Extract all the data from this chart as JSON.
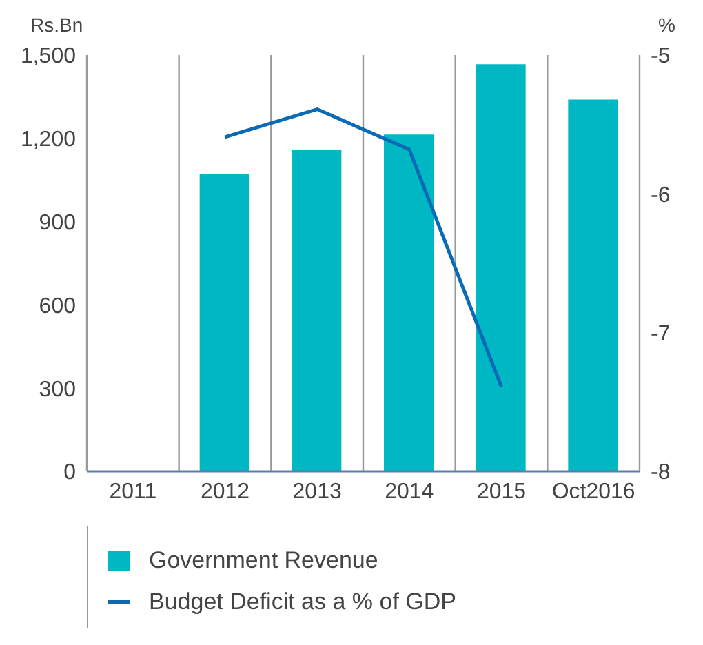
{
  "chart_data": {
    "type": "bar",
    "ylabel": "Rs.Bn",
    "y2label": "%",
    "categories": [
      "2011",
      "2012",
      "2013",
      "2014",
      "2015",
      "Oct2016"
    ],
    "series": [
      {
        "name": "Government Revenue",
        "color": "#00b8c4",
        "values": [
          null,
          1072,
          1160,
          1214,
          1467,
          1340
        ]
      },
      {
        "name": "Budget Deficit as a % of GDP",
        "type": "line",
        "axis": "y2",
        "color": "#0a6ab5",
        "values": [
          null,
          -5.59,
          -5.39,
          -5.68,
          -7.39,
          null
        ]
      }
    ],
    "ylim": [
      0,
      1500
    ],
    "yticks": [
      {
        "value": 0,
        "label": "0"
      },
      {
        "value": 300,
        "label": "300"
      },
      {
        "value": 600,
        "label": "600"
      },
      {
        "value": 900,
        "label": "900"
      },
      {
        "value": 1200,
        "label": "1,200"
      },
      {
        "value": 1500,
        "label": "1,500"
      }
    ],
    "y2lim": [
      -8,
      -5
    ],
    "y2ticks": [
      -8,
      -7,
      -6,
      -5
    ],
    "grid": "x",
    "legend": "bottom left",
    "marker": "none",
    "line_style": "solid"
  }
}
